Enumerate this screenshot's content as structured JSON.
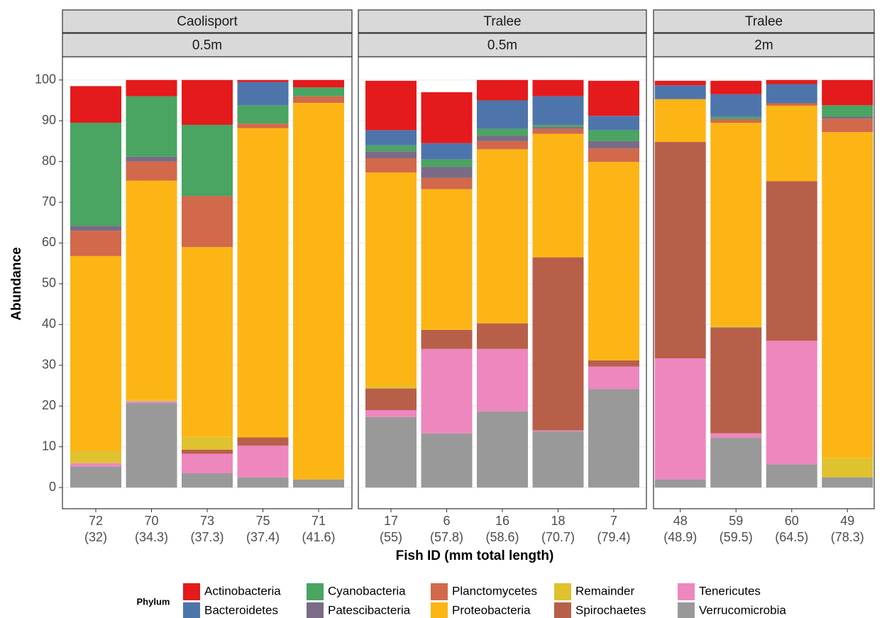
{
  "chart_data": {
    "type": "bar",
    "stacked": true,
    "ylabel": "Abundance",
    "xlabel": "Fish ID (mm total length)",
    "legend_title": "Phylum",
    "legend_position": "bottom",
    "grid": true,
    "ylim": [
      -5.2,
      105.7
    ],
    "yticks": [
      0,
      10,
      20,
      30,
      40,
      50,
      60,
      70,
      80,
      90,
      100
    ],
    "facets": [
      {
        "strip": [
          "Caolisport",
          "0.5m"
        ],
        "categories": [
          "72",
          "70",
          "73",
          "75",
          "71"
        ],
        "lengths": [
          "(32)",
          "(34.3)",
          "(37.3)",
          "(37.4)",
          "(41.6)"
        ]
      },
      {
        "strip": [
          "Tralee",
          "0.5m"
        ],
        "categories": [
          "17",
          "6",
          "16",
          "18",
          "7"
        ],
        "lengths": [
          "(55)",
          "(57.8)",
          "(58.6)",
          "(70.7)",
          "(79.4)"
        ]
      },
      {
        "strip": [
          "Tralee",
          "2m"
        ],
        "categories": [
          "48",
          "59",
          "60",
          "49"
        ],
        "lengths": [
          "(48.9)",
          "(59.5)",
          "(64.5)",
          "(78.3)"
        ]
      }
    ],
    "series": [
      {
        "name": "Actinobacteria",
        "color": "#e41a1c",
        "values": [
          9,
          4,
          11,
          0.5,
          1.8,
          12.1,
          12.5,
          5,
          4,
          8.6,
          1.1,
          3.3,
          1,
          6.2
        ]
      },
      {
        "name": "Bacteroidetes",
        "color": "#4e75ab",
        "values": [
          0,
          0,
          0,
          5.7,
          0,
          3.7,
          4,
          7,
          7,
          3.5,
          3.4,
          5.5,
          4.7,
          0
        ]
      },
      {
        "name": "Cyanobacteria",
        "color": "#4aa462",
        "values": [
          25.3,
          14.8,
          17.5,
          4.5,
          2.2,
          1.5,
          1.8,
          1.7,
          0.5,
          2.7,
          0,
          0.5,
          0,
          2.8
        ]
      },
      {
        "name": "Patescibacteria",
        "color": "#7a6b86",
        "values": [
          1.2,
          1.2,
          0,
          0,
          0,
          1.7,
          2.7,
          1.3,
          0.5,
          1.8,
          0,
          0.2,
          0,
          0.5
        ]
      },
      {
        "name": "Planctomycetes",
        "color": "#d2694a",
        "values": [
          6.2,
          4.7,
          12.5,
          1.1,
          1.6,
          3.5,
          2.8,
          2,
          1.2,
          3.3,
          0,
          0.8,
          0.6,
          3.3
        ]
      },
      {
        "name": "Proteobacteria",
        "color": "#fdb515",
        "values": [
          47.8,
          53.8,
          46.5,
          75.9,
          92.4,
          52.3,
          34.5,
          42.7,
          30.3,
          48.7,
          10.5,
          49.8,
          18.5,
          79.9
        ]
      },
      {
        "name": "Remainder",
        "color": "#e0c12e",
        "values": [
          3,
          0.3,
          3.2,
          0,
          0,
          0.7,
          0,
          0,
          0,
          0,
          0,
          0.4,
          0,
          4.8
        ]
      },
      {
        "name": "Spirochaetes",
        "color": "#b85f4a",
        "values": [
          0,
          0,
          1,
          2,
          0,
          5.3,
          4.7,
          6.3,
          42.5,
          1.5,
          53.1,
          26,
          39.2,
          0
        ]
      },
      {
        "name": "Tenericutes",
        "color": "#ee87be",
        "values": [
          0.8,
          0.4,
          4.8,
          7.8,
          0,
          1.7,
          20.7,
          15.3,
          0.2,
          5.5,
          29.7,
          1.1,
          30.3,
          0
        ]
      },
      {
        "name": "Verrucomicrobia",
        "color": "#999999",
        "values": [
          5.2,
          20.8,
          3.5,
          2.5,
          2,
          17.3,
          13.3,
          18.7,
          13.8,
          24.2,
          2,
          12.2,
          5.7,
          2.5
        ]
      }
    ]
  }
}
